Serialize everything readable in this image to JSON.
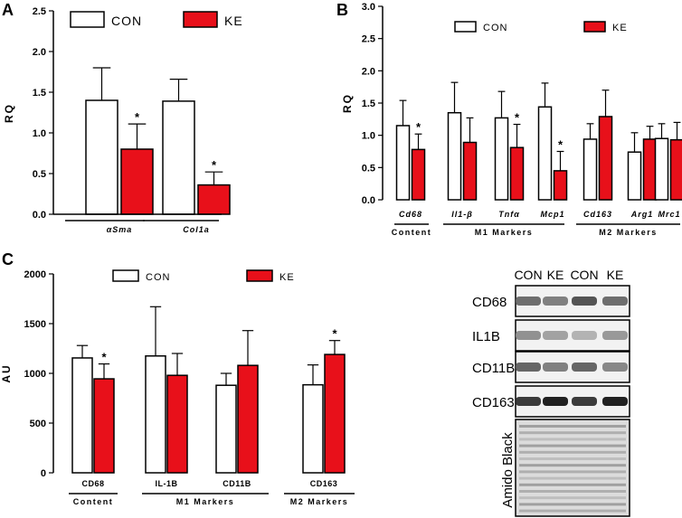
{
  "colors": {
    "con": "#ffffff",
    "ke": "#e8101a",
    "stroke": "#000000"
  },
  "chart_data": [
    {
      "panel": "A",
      "type": "bar",
      "ylabel": "RQ",
      "ylim": [
        0,
        2.5
      ],
      "yticks": [
        "0.0",
        "0.5",
        "1.0",
        "1.5",
        "2.0",
        "2.5"
      ],
      "legend": [
        "CON",
        "KE"
      ],
      "categories": [
        "αSma",
        "Col1a"
      ],
      "series": [
        {
          "name": "CON",
          "values": [
            1.4,
            1.39
          ],
          "errors": [
            0.4,
            0.27
          ]
        },
        {
          "name": "KE",
          "values": [
            0.8,
            0.36
          ],
          "errors": [
            0.31,
            0.16
          ]
        }
      ],
      "significance": [
        {
          "category": "αSma",
          "series": "KE",
          "mark": "*"
        },
        {
          "category": "Col1a",
          "series": "KE",
          "mark": "*"
        }
      ]
    },
    {
      "panel": "B",
      "type": "bar",
      "ylabel": "RQ",
      "ylim": [
        0,
        3.0
      ],
      "yticks": [
        "0.0",
        "0.5",
        "1.0",
        "1.5",
        "2.0",
        "2.5",
        "3.0"
      ],
      "legend": [
        "CON",
        "KE"
      ],
      "categories": [
        "Cd68",
        "Il1-β",
        "Tnfα",
        "Mcp1",
        "Cd163",
        "Arg1",
        "Mrc1"
      ],
      "groups": [
        {
          "label": "Content",
          "categories": [
            "Cd68"
          ]
        },
        {
          "label": "M1 Markers",
          "categories": [
            "Il1-β",
            "Tnfα",
            "Mcp1"
          ]
        },
        {
          "label": "M2 Markers",
          "categories": [
            "Cd163",
            "Arg1",
            "Mrc1"
          ]
        }
      ],
      "series": [
        {
          "name": "CON",
          "values": [
            1.15,
            1.35,
            1.27,
            1.44,
            0.94,
            0.74,
            0.95
          ],
          "errors": [
            0.39,
            0.47,
            0.41,
            0.37,
            0.24,
            0.3,
            0.23
          ]
        },
        {
          "name": "KE",
          "values": [
            0.78,
            0.89,
            0.81,
            0.45,
            1.29,
            0.94,
            0.93
          ],
          "errors": [
            0.24,
            0.38,
            0.36,
            0.3,
            0.41,
            0.2,
            0.27
          ]
        }
      ],
      "significance": [
        {
          "category": "Cd68",
          "series": "KE",
          "mark": "*"
        },
        {
          "category": "Tnfα",
          "series": "KE",
          "mark": "*"
        },
        {
          "category": "Mcp1",
          "series": "KE",
          "mark": "*"
        }
      ]
    },
    {
      "panel": "C",
      "type": "bar",
      "ylabel": "AU",
      "ylim": [
        0,
        2000
      ],
      "yticks": [
        "0",
        "500",
        "1000",
        "1500",
        "2000"
      ],
      "legend": [
        "CON",
        "KE"
      ],
      "categories": [
        "CD68",
        "IL-1B",
        "CD11B",
        "CD163"
      ],
      "groups": [
        {
          "label": "Content",
          "categories": [
            "CD68"
          ]
        },
        {
          "label": "M1 Markers",
          "categories": [
            "IL-1B",
            "CD11B"
          ]
        },
        {
          "label": "M2 Markers",
          "categories": [
            "CD163"
          ]
        }
      ],
      "series": [
        {
          "name": "CON",
          "values": [
            1155,
            1175,
            880,
            885
          ],
          "errors": [
            125,
            495,
            120,
            200
          ]
        },
        {
          "name": "KE",
          "values": [
            945,
            980,
            1080,
            1190
          ],
          "errors": [
            150,
            220,
            350,
            140
          ]
        }
      ],
      "significance": [
        {
          "category": "CD68",
          "series": "KE",
          "mark": "*"
        },
        {
          "category": "CD163",
          "series": "KE",
          "mark": "*"
        }
      ]
    }
  ],
  "blot": {
    "columns": [
      "CON",
      "KE",
      "CON",
      "KE"
    ],
    "rows": [
      "CD68",
      "IL1B",
      "CD11B",
      "CD163"
    ],
    "loading_control": "Amido Black",
    "band_intensity": [
      [
        0.55,
        0.45,
        0.7,
        0.55
      ],
      [
        0.35,
        0.25,
        0.15,
        0.3
      ],
      [
        0.6,
        0.45,
        0.6,
        0.4
      ],
      [
        0.85,
        1.0,
        0.85,
        1.0
      ]
    ]
  }
}
